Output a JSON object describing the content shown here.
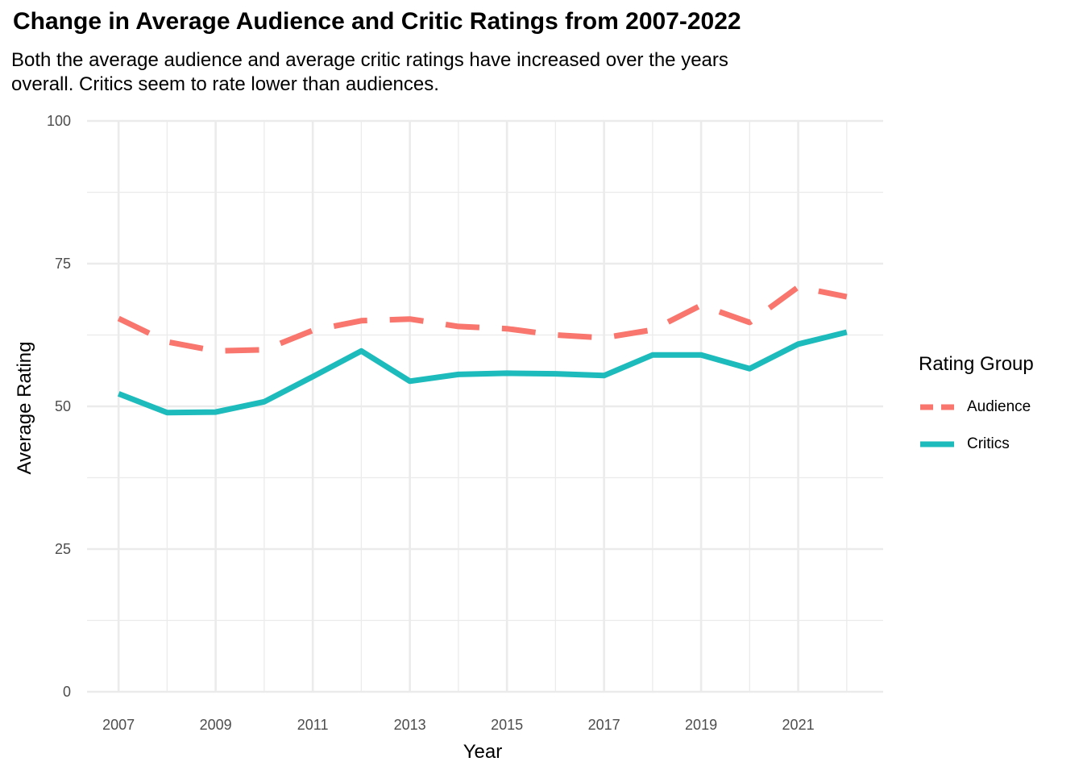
{
  "title": "Change in Average Audience and Critic Ratings from 2007-2022",
  "subtitle": "Both the average audience and average critic ratings have increased over the years overall. Critics seem to rate lower than audiences.",
  "chart_data": {
    "type": "line",
    "title": "Change in Average Audience and Critic Ratings from 2007-2022",
    "subtitle": "Both the average audience and average critic ratings have increased over the years overall. Critics seem to rate lower than audiences.",
    "xlabel": "Year",
    "ylabel": "Average Rating",
    "x": [
      2007,
      2008,
      2009,
      2010,
      2011,
      2012,
      2013,
      2014,
      2015,
      2016,
      2017,
      2018,
      2019,
      2020,
      2021,
      2022
    ],
    "xticks": [
      "2007",
      "2009",
      "2011",
      "2013",
      "2015",
      "2017",
      "2019",
      "2021"
    ],
    "yticks": [
      "0",
      "25",
      "50",
      "75",
      "100"
    ],
    "xlim": [
      2006.35,
      2022.75
    ],
    "ylim": [
      0,
      100
    ],
    "grid": true,
    "legend": {
      "title": "Rating Group",
      "position": "right"
    },
    "series": [
      {
        "name": "Audience",
        "color": "#F8766D",
        "dash": "dashed",
        "values": [
          65.4,
          61.3,
          59.7,
          59.9,
          63.3,
          65.0,
          65.3,
          64.0,
          63.6,
          62.5,
          62.0,
          63.4,
          67.7,
          64.7,
          70.9,
          69.2
        ]
      },
      {
        "name": "Critics",
        "color": "#1DBBBB",
        "dash": "solid",
        "values": [
          52.2,
          48.9,
          49.0,
          50.8,
          55.2,
          59.7,
          54.4,
          55.6,
          55.8,
          55.7,
          55.4,
          59.0,
          59.0,
          56.6,
          60.9,
          63.0
        ]
      }
    ]
  }
}
